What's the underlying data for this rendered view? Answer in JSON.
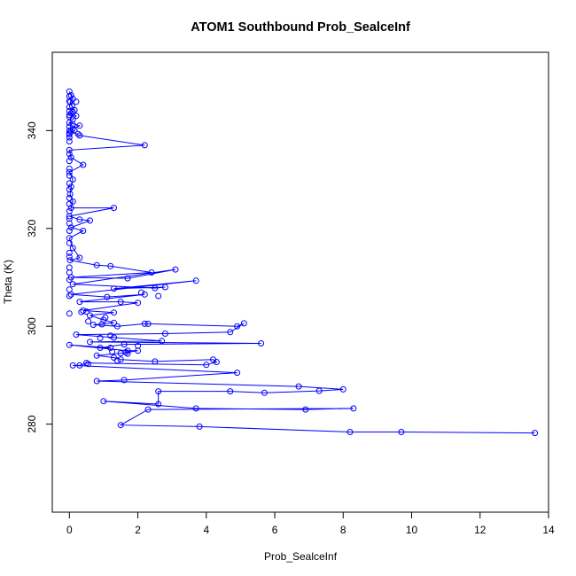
{
  "chart_data": {
    "type": "line",
    "title": "ATOM1 Southbound Prob_SealceInf",
    "xlabel": "Prob_SealceInf",
    "ylabel": "Theta (K)",
    "xlim": [
      -0.5,
      14.0
    ],
    "ylim": [
      262,
      356
    ],
    "xticks": [
      0,
      2,
      4,
      6,
      8,
      10,
      12,
      14
    ],
    "yticks": [
      280,
      300,
      320,
      340
    ],
    "grid": false,
    "color": "#0000ff",
    "markers": "open-circle",
    "series": [
      {
        "points": [
          [
            0.0,
            348.0
          ],
          [
            0.05,
            347.2
          ],
          [
            0.1,
            346.5
          ],
          [
            0.02,
            345.8
          ],
          [
            0.08,
            345.0
          ],
          [
            0.15,
            344.2
          ],
          [
            0.05,
            343.5
          ],
          [
            0.2,
            343.0
          ],
          [
            0.1,
            342.3
          ],
          [
            0.0,
            341.6
          ],
          [
            0.3,
            341.0
          ],
          [
            0.1,
            340.4
          ],
          [
            0.05,
            339.8
          ],
          [
            0.3,
            339.0
          ],
          [
            2.2,
            337.0
          ],
          [
            0.0,
            336.0
          ],
          [
            0.05,
            334.5
          ],
          [
            0.4,
            333.0
          ],
          [
            0.0,
            331.5
          ],
          [
            0.1,
            330.0
          ],
          [
            0.05,
            328.5
          ],
          [
            0.02,
            327.0
          ],
          [
            0.1,
            325.5
          ],
          [
            0.05,
            324.2
          ],
          [
            1.3,
            324.2
          ],
          [
            0.0,
            322.5
          ],
          [
            0.3,
            321.8
          ],
          [
            0.6,
            321.6
          ],
          [
            0.05,
            320.2
          ],
          [
            0.4,
            319.5
          ],
          [
            0.0,
            318.0
          ],
          [
            0.1,
            316.0
          ],
          [
            0.3,
            314.0
          ],
          [
            0.02,
            313.5
          ],
          [
            0.8,
            312.5
          ],
          [
            1.2,
            312.3
          ],
          [
            2.4,
            311.0
          ],
          [
            0.05,
            310.0
          ],
          [
            1.7,
            309.8
          ],
          [
            3.1,
            311.6
          ],
          [
            0.1,
            308.6
          ],
          [
            2.5,
            307.8
          ],
          [
            2.8,
            308.0
          ],
          [
            1.3,
            307.7
          ],
          [
            3.7,
            309.3
          ],
          [
            0.05,
            306.5
          ],
          [
            1.1,
            306.0
          ],
          [
            2.2,
            306.5
          ],
          [
            0.3,
            305.0
          ],
          [
            1.5,
            305.0
          ],
          [
            2.0,
            304.8
          ],
          [
            0.4,
            303.2
          ],
          [
            1.3,
            302.8
          ],
          [
            0.6,
            302.2
          ],
          [
            1.0,
            301.3
          ],
          [
            1.3,
            300.7
          ],
          [
            0.7,
            300.3
          ],
          [
            1.4,
            300.0
          ],
          [
            2.2,
            300.5
          ],
          [
            2.3,
            300.5
          ],
          [
            4.9,
            300.0
          ],
          [
            5.1,
            300.6
          ],
          [
            4.7,
            298.8
          ],
          [
            2.8,
            298.5
          ],
          [
            0.2,
            298.3
          ],
          [
            1.3,
            297.7
          ],
          [
            2.7,
            297.0
          ],
          [
            0.6,
            296.8
          ],
          [
            5.6,
            296.5
          ],
          [
            1.6,
            296.3
          ],
          [
            0.9,
            295.6
          ],
          [
            1.2,
            295.6
          ],
          [
            0.0,
            296.2
          ],
          [
            1.7,
            295.0
          ],
          [
            2.0,
            295.0
          ],
          [
            1.5,
            294.5
          ],
          [
            0.8,
            294.0
          ],
          [
            1.3,
            293.6
          ],
          [
            1.5,
            293.2
          ],
          [
            2.5,
            292.8
          ],
          [
            4.2,
            293.2
          ],
          [
            4.3,
            292.7
          ],
          [
            4.0,
            292.1
          ],
          [
            0.5,
            292.5
          ],
          [
            0.3,
            292.0
          ],
          [
            0.1,
            292.0
          ],
          [
            4.9,
            290.5
          ],
          [
            1.6,
            289.0
          ],
          [
            0.8,
            288.8
          ],
          [
            6.7,
            287.7
          ],
          [
            8.0,
            287.1
          ],
          [
            7.3,
            286.8
          ],
          [
            5.7,
            286.4
          ],
          [
            4.7,
            286.7
          ],
          [
            2.6,
            286.7
          ],
          [
            2.6,
            284.1
          ],
          [
            1.0,
            284.7
          ],
          [
            3.7,
            283.2
          ],
          [
            6.9,
            283.0
          ],
          [
            8.3,
            283.2
          ],
          [
            2.3,
            283.0
          ],
          [
            1.5,
            279.8
          ],
          [
            3.8,
            279.5
          ],
          [
            8.2,
            278.4
          ],
          [
            9.7,
            278.4
          ],
          [
            13.6,
            278.2
          ]
        ]
      }
    ],
    "extra_points": [
      [
        0.0,
        347.0
      ],
      [
        0.0,
        346.0
      ],
      [
        0.0,
        344.8
      ],
      [
        0.0,
        344.0
      ],
      [
        0.0,
        343.2
      ],
      [
        0.0,
        342.8
      ],
      [
        0.0,
        340.8
      ],
      [
        0.0,
        340.0
      ],
      [
        0.0,
        339.5
      ],
      [
        0.0,
        339.2
      ],
      [
        0.0,
        338.6
      ],
      [
        0.0,
        337.8
      ],
      [
        0.0,
        335.2
      ],
      [
        0.0,
        333.8
      ],
      [
        0.0,
        332.2
      ],
      [
        0.0,
        330.8
      ],
      [
        0.0,
        329.2
      ],
      [
        0.0,
        328.0
      ],
      [
        0.0,
        326.2
      ],
      [
        0.0,
        325.0
      ],
      [
        0.0,
        323.5
      ],
      [
        0.0,
        322.0
      ],
      [
        0.0,
        321.0
      ],
      [
        0.0,
        319.5
      ],
      [
        0.0,
        317.0
      ],
      [
        0.0,
        315.0
      ],
      [
        0.0,
        314.2
      ],
      [
        0.0,
        312.0
      ],
      [
        0.0,
        311.0
      ],
      [
        0.0,
        309.5
      ],
      [
        0.0,
        307.5
      ],
      [
        0.0,
        306.2
      ],
      [
        0.0,
        302.6
      ],
      [
        0.1,
        343.8
      ],
      [
        0.1,
        341.2
      ],
      [
        0.2,
        345.9
      ],
      [
        0.15,
        340.1
      ],
      [
        0.25,
        339.3
      ],
      [
        0.35,
        302.9
      ],
      [
        0.5,
        303.0
      ],
      [
        0.55,
        301.0
      ],
      [
        0.95,
        300.4
      ],
      [
        1.05,
        301.8
      ],
      [
        0.9,
        297.6
      ],
      [
        1.2,
        298.1
      ],
      [
        1.65,
        294.7
      ],
      [
        1.7,
        294.4
      ],
      [
        1.25,
        294.8
      ],
      [
        1.4,
        293.0
      ],
      [
        0.55,
        292.3
      ],
      [
        2.0,
        296.0
      ],
      [
        2.1,
        306.9
      ],
      [
        2.6,
        306.2
      ]
    ]
  }
}
